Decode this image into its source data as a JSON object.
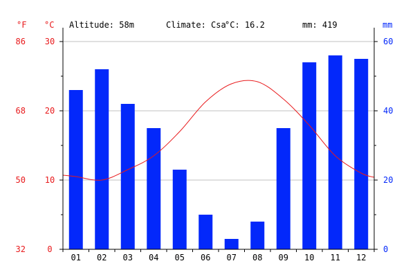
{
  "header": {
    "altitude": "Altitude: 58m",
    "climate": "Climate: Csa",
    "mean_temp": "°C: 16.2",
    "precip": "mm: 419"
  },
  "colors": {
    "temperature": "#e8191b",
    "precipitation": "#0328fa",
    "grid": "#c0c0c0",
    "axis": "#000000"
  },
  "chart_data": {
    "type": "bar",
    "categories": [
      "01",
      "02",
      "03",
      "04",
      "05",
      "06",
      "07",
      "08",
      "09",
      "10",
      "11",
      "12"
    ],
    "units": {
      "fahrenheit": "°F",
      "celsius": "°C",
      "precipitation": "mm"
    },
    "axes": {
      "fahrenheit_ticks": [
        "86",
        "68",
        "50",
        "32"
      ],
      "fahrenheit_values": [
        86,
        68,
        50,
        32
      ],
      "celsius_ticks": [
        "30",
        "20",
        "10",
        "0"
      ],
      "celsius_values": [
        30,
        20,
        10,
        0
      ],
      "celsius_range": [
        0,
        30
      ],
      "precipitation_ticks": [
        "60",
        "40",
        "20",
        "0"
      ],
      "precipitation_values": [
        60,
        40,
        20,
        0
      ],
      "precipitation_range": [
        0,
        60
      ]
    },
    "grid": true,
    "series": [
      {
        "kind": "bar",
        "values": [
          46,
          52,
          42,
          35,
          23,
          10,
          3,
          8,
          35,
          54,
          56,
          55
        ]
      },
      {
        "kind": "line",
        "values": [
          10.5,
          10.0,
          11.5,
          13.5,
          17.0,
          21.3,
          23.9,
          24.2,
          21.7,
          17.9,
          13.5,
          11.0
        ]
      }
    ]
  }
}
